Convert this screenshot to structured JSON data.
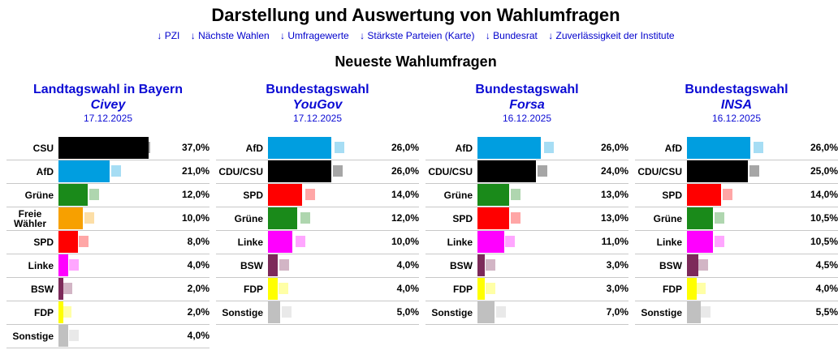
{
  "page": {
    "title": "Darstellung und Auswertung von Wahlumfragen",
    "subtitle": "Neueste Wahlumfragen"
  },
  "nav": [
    "↓ PZI",
    "↓ Nächste Wahlen",
    "↓ Umfragewerte",
    "↓ Stärkste Parteien (Karte)",
    "↓ Bundesrat",
    "↓ Zuverlässigkeit der Institute"
  ],
  "colors": {
    "CSU": "#000000",
    "CDU/CSU": "#000000",
    "AfD": "#009ee0",
    "Grüne": "#1a8a1a",
    "Freie Wähler": "#f7a000",
    "SPD": "#ff0000",
    "Linke": "#ff00ff",
    "BSW": "#7d2a5a",
    "FDP": "#ffff00",
    "Sonstige": "#c0c0c0"
  },
  "chart_data": [
    {
      "type": "bar",
      "title": "Landtagswahl in Bayern",
      "institute": "Civey",
      "date": "17.12.2025",
      "categories": [
        "CSU",
        "AfD",
        "Grüne",
        "Freie Wähler",
        "SPD",
        "Linke",
        "BSW",
        "FDP",
        "Sonstige"
      ],
      "values": [
        37.0,
        21.0,
        12.0,
        10.0,
        8.0,
        4.0,
        2.0,
        2.0,
        4.0
      ],
      "labels": [
        "37,0%",
        "21,0%",
        "12,0%",
        "10,0%",
        "8,0%",
        "4,0%",
        "2,0%",
        "2,0%",
        "4,0%"
      ],
      "previous": [
        35.0,
        23.0,
        14.0,
        12.0,
        9.5,
        5.5,
        3.0,
        2.5,
        5.5
      ]
    },
    {
      "type": "bar",
      "title": "Bundestagswahl",
      "institute": "YouGov",
      "date": "17.12.2025",
      "categories": [
        "AfD",
        "CDU/CSU",
        "SPD",
        "Grüne",
        "Linke",
        "BSW",
        "FDP",
        "Sonstige"
      ],
      "values": [
        26.0,
        26.0,
        14.0,
        12.0,
        10.0,
        4.0,
        4.0,
        5.0
      ],
      "labels": [
        "26,0%",
        "26,0%",
        "14,0%",
        "12,0%",
        "10,0%",
        "4,0%",
        "4,0%",
        "5,0%"
      ],
      "previous": [
        28.5,
        28.0,
        16.5,
        14.5,
        12.5,
        6.0,
        5.5,
        7.0
      ]
    },
    {
      "type": "bar",
      "title": "Bundestagswahl",
      "institute": "Forsa",
      "date": "16.12.2025",
      "categories": [
        "AfD",
        "CDU/CSU",
        "Grüne",
        "SPD",
        "Linke",
        "BSW",
        "FDP",
        "Sonstige"
      ],
      "values": [
        26.0,
        24.0,
        13.0,
        13.0,
        11.0,
        3.0,
        3.0,
        7.0
      ],
      "labels": [
        "26,0%",
        "24,0%",
        "13,0%",
        "13,0%",
        "11,0%",
        "3,0%",
        "3,0%",
        "7,0%"
      ],
      "previous": [
        28.5,
        26.0,
        15.0,
        15.0,
        12.5,
        4.5,
        4.5,
        9.0
      ]
    },
    {
      "type": "bar",
      "title": "Bundestagswahl",
      "institute": "INSA",
      "date": "16.12.2025",
      "categories": [
        "AfD",
        "CDU/CSU",
        "SPD",
        "Grüne",
        "Linke",
        "BSW",
        "FDP",
        "Sonstige"
      ],
      "values": [
        26.0,
        25.0,
        14.0,
        10.5,
        10.5,
        4.5,
        4.0,
        5.5
      ],
      "labels": [
        "26,0%",
        "25,0%",
        "14,0%",
        "10,5%",
        "10,5%",
        "4,5%",
        "4,0%",
        "5,5%"
      ],
      "previous": [
        28.5,
        27.0,
        16.0,
        12.5,
        12.5,
        6.0,
        5.0,
        7.0
      ]
    }
  ]
}
